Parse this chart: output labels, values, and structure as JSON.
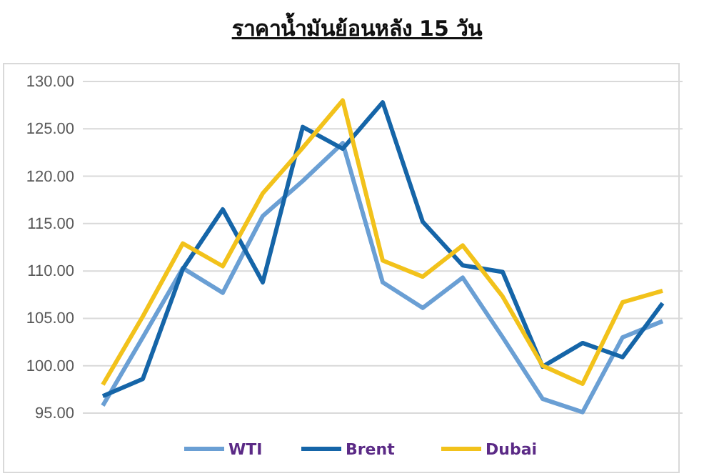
{
  "chart_data": {
    "type": "line",
    "title": "ราคาน้ำมันย้อนหลัง 15 วัน",
    "categories": [
      null,
      null,
      null,
      null,
      null,
      null,
      null,
      null,
      null,
      null,
      null,
      null,
      null,
      null,
      null
    ],
    "series": [
      {
        "name": "WTI",
        "color": "#6a9fd4",
        "values": [
          95.8,
          103,
          110.3,
          107.7,
          115.8,
          119.5,
          123.5,
          108.8,
          106.1,
          109.3,
          103,
          96.5,
          95.1,
          103,
          104.7
        ]
      },
      {
        "name": "Brent",
        "color": "#1565a8",
        "values": [
          96.8,
          98.6,
          110.2,
          116.5,
          108.8,
          125.2,
          122.9,
          127.8,
          115.2,
          110.6,
          109.9,
          99.9,
          102.4,
          100.9,
          106.6
        ]
      },
      {
        "name": "Dubai",
        "color": "#f2c21b",
        "values": [
          98,
          105.2,
          112.9,
          110.5,
          118.2,
          123,
          128,
          111.1,
          109.4,
          112.7,
          107.3,
          100,
          98.1,
          106.7,
          107.9
        ]
      }
    ],
    "ylim": [
      95,
      130
    ],
    "yticks": [
      {
        "value": 95,
        "label": "95.00"
      },
      {
        "value": 100,
        "label": "100.00"
      },
      {
        "value": 105,
        "label": "105.00"
      },
      {
        "value": 110,
        "label": "110.00"
      },
      {
        "value": 115,
        "label": "115.00"
      },
      {
        "value": 120,
        "label": "120.00"
      },
      {
        "value": 125,
        "label": "125.00"
      },
      {
        "value": 130,
        "label": "130.00"
      }
    ],
    "grid": "y",
    "legend": "bottom",
    "marker": "none",
    "line_style": "solid"
  }
}
